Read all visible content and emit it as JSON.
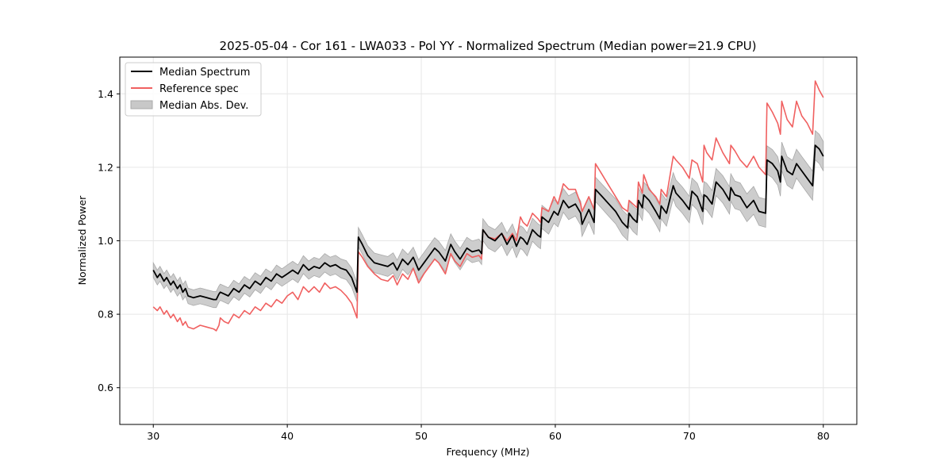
{
  "chart_data": {
    "type": "line",
    "title": "2025-05-04 - Cor 161 - LWA033 - Pol YY - Normalized Spectrum (Median power=21.9 CPU)",
    "xlabel": "Frequency (MHz)",
    "ylabel": "Normalized Power",
    "xlim": [
      27.5,
      82.5
    ],
    "ylim": [
      0.5,
      1.5
    ],
    "xticks": [
      30,
      40,
      50,
      60,
      70,
      80
    ],
    "xtick_labels": [
      "30",
      "40",
      "50",
      "60",
      "70",
      "80"
    ],
    "yticks": [
      0.6,
      0.8,
      1.0,
      1.2,
      1.4
    ],
    "ytick_labels": [
      "0.6",
      "0.8",
      "1.0",
      "1.2",
      "1.4"
    ],
    "grid": true,
    "legend_position": "top-left",
    "legend": [
      {
        "label": "Median Spectrum",
        "kind": "line",
        "color": "#000000"
      },
      {
        "label": "Reference spec",
        "kind": "line",
        "color": "#f06060"
      },
      {
        "label": "Median Abs. Dev.",
        "kind": "band",
        "color": "#bbbbbb"
      }
    ],
    "series": [
      {
        "name": "Median Spectrum",
        "color": "#000000",
        "x": [
          30.0,
          30.3,
          30.5,
          30.8,
          31.0,
          31.3,
          31.5,
          31.8,
          32.0,
          32.2,
          32.4,
          32.6,
          33.0,
          33.5,
          34.0,
          34.5,
          34.7,
          34.9,
          35.0,
          35.3,
          35.6,
          36.0,
          36.4,
          36.8,
          37.2,
          37.6,
          38.0,
          38.4,
          38.8,
          39.2,
          39.6,
          40.0,
          40.4,
          40.8,
          41.2,
          41.6,
          42.0,
          42.4,
          42.8,
          43.2,
          43.6,
          44.0,
          44.4,
          44.8,
          45.2,
          45.3,
          45.6,
          46.0,
          46.5,
          47.0,
          47.5,
          47.9,
          48.2,
          48.6,
          49.0,
          49.4,
          49.8,
          50.2,
          50.6,
          51.0,
          51.3,
          51.8,
          52.2,
          52.5,
          52.9,
          53.4,
          53.8,
          54.3,
          54.5,
          54.6,
          55.0,
          55.5,
          56.0,
          56.4,
          56.8,
          57.1,
          57.4,
          57.6,
          57.9,
          58.3,
          58.7,
          58.9,
          59.0,
          59.5,
          59.9,
          60.2,
          60.6,
          61.0,
          61.5,
          61.9,
          62.0,
          62.5,
          62.9,
          63.0,
          63.5,
          64.0,
          64.5,
          65.0,
          65.4,
          65.5,
          65.8,
          66.1,
          66.2,
          66.5,
          66.6,
          67.0,
          67.5,
          67.8,
          67.9,
          68.3,
          68.8,
          69.0,
          69.5,
          70.0,
          70.2,
          70.6,
          71.0,
          71.1,
          71.3,
          71.7,
          72.0,
          72.5,
          73.0,
          73.1,
          73.4,
          73.8,
          74.3,
          74.8,
          75.2,
          75.7,
          75.8,
          76.2,
          76.6,
          76.8,
          76.9,
          77.3,
          77.7,
          78.0,
          78.4,
          78.8,
          79.2,
          79.4,
          79.7,
          80.0
        ],
        "y": [
          0.92,
          0.9,
          0.91,
          0.89,
          0.9,
          0.88,
          0.89,
          0.87,
          0.88,
          0.86,
          0.87,
          0.85,
          0.845,
          0.85,
          0.845,
          0.84,
          0.84,
          0.855,
          0.86,
          0.855,
          0.85,
          0.87,
          0.86,
          0.88,
          0.87,
          0.89,
          0.88,
          0.9,
          0.89,
          0.91,
          0.9,
          0.91,
          0.92,
          0.91,
          0.935,
          0.92,
          0.93,
          0.925,
          0.94,
          0.93,
          0.935,
          0.925,
          0.92,
          0.9,
          0.86,
          1.01,
          0.99,
          0.96,
          0.94,
          0.935,
          0.93,
          0.94,
          0.92,
          0.95,
          0.935,
          0.955,
          0.92,
          0.94,
          0.96,
          0.98,
          0.97,
          0.945,
          0.99,
          0.97,
          0.95,
          0.98,
          0.97,
          0.975,
          0.965,
          1.03,
          1.01,
          1.0,
          1.02,
          0.99,
          1.015,
          0.985,
          1.01,
          1.005,
          0.99,
          1.03,
          1.015,
          1.01,
          1.065,
          1.05,
          1.08,
          1.07,
          1.11,
          1.09,
          1.1,
          1.075,
          1.045,
          1.085,
          1.05,
          1.14,
          1.12,
          1.1,
          1.08,
          1.05,
          1.035,
          1.075,
          1.06,
          1.05,
          1.11,
          1.09,
          1.125,
          1.11,
          1.08,
          1.06,
          1.095,
          1.075,
          1.15,
          1.13,
          1.11,
          1.085,
          1.135,
          1.12,
          1.08,
          1.125,
          1.12,
          1.1,
          1.16,
          1.14,
          1.11,
          1.145,
          1.125,
          1.12,
          1.09,
          1.11,
          1.08,
          1.075,
          1.22,
          1.21,
          1.19,
          1.16,
          1.23,
          1.19,
          1.18,
          1.21,
          1.19,
          1.17,
          1.15,
          1.26,
          1.25,
          1.23
        ]
      },
      {
        "name": "Reference spec",
        "color": "#f06060",
        "x": [
          30.0,
          30.3,
          30.5,
          30.8,
          31.0,
          31.3,
          31.5,
          31.8,
          32.0,
          32.2,
          32.4,
          32.6,
          33.0,
          33.5,
          34.0,
          34.5,
          34.7,
          34.9,
          35.0,
          35.3,
          35.6,
          36.0,
          36.4,
          36.8,
          37.2,
          37.6,
          38.0,
          38.4,
          38.8,
          39.2,
          39.6,
          40.0,
          40.4,
          40.8,
          41.2,
          41.6,
          42.0,
          42.4,
          42.8,
          43.2,
          43.6,
          44.0,
          44.4,
          44.8,
          45.2,
          45.3,
          45.6,
          46.0,
          46.5,
          47.0,
          47.5,
          47.9,
          48.2,
          48.6,
          49.0,
          49.4,
          49.8,
          50.2,
          50.6,
          51.0,
          51.3,
          51.8,
          52.2,
          52.5,
          52.9,
          53.4,
          53.8,
          54.3,
          54.5,
          54.6,
          55.0,
          55.5,
          56.0,
          56.4,
          56.8,
          57.1,
          57.4,
          57.6,
          57.9,
          58.3,
          58.7,
          58.9,
          59.0,
          59.5,
          59.9,
          60.2,
          60.6,
          61.0,
          61.5,
          61.9,
          62.0,
          62.5,
          62.9,
          63.0,
          63.5,
          64.0,
          64.5,
          65.0,
          65.4,
          65.5,
          65.8,
          66.1,
          66.2,
          66.5,
          66.6,
          67.0,
          67.5,
          67.8,
          67.9,
          68.3,
          68.8,
          69.0,
          69.5,
          70.0,
          70.2,
          70.6,
          71.0,
          71.1,
          71.3,
          71.7,
          72.0,
          72.5,
          73.0,
          73.1,
          73.4,
          73.8,
          74.3,
          74.8,
          75.2,
          75.7,
          75.8,
          76.2,
          76.6,
          76.8,
          76.9,
          77.3,
          77.7,
          78.0,
          78.4,
          78.8,
          79.2,
          79.4,
          79.7,
          80.0
        ],
        "y": [
          0.82,
          0.81,
          0.82,
          0.8,
          0.81,
          0.79,
          0.8,
          0.78,
          0.79,
          0.77,
          0.78,
          0.765,
          0.76,
          0.77,
          0.765,
          0.76,
          0.755,
          0.77,
          0.79,
          0.78,
          0.775,
          0.8,
          0.79,
          0.81,
          0.8,
          0.82,
          0.81,
          0.83,
          0.82,
          0.84,
          0.83,
          0.85,
          0.86,
          0.84,
          0.875,
          0.86,
          0.875,
          0.86,
          0.885,
          0.87,
          0.875,
          0.865,
          0.85,
          0.83,
          0.79,
          0.97,
          0.955,
          0.93,
          0.91,
          0.895,
          0.89,
          0.905,
          0.88,
          0.91,
          0.895,
          0.925,
          0.885,
          0.91,
          0.93,
          0.95,
          0.94,
          0.91,
          0.965,
          0.945,
          0.93,
          0.965,
          0.955,
          0.96,
          0.95,
          1.03,
          1.01,
          1.005,
          1.02,
          1.0,
          1.02,
          1.0,
          1.065,
          1.05,
          1.04,
          1.075,
          1.06,
          1.05,
          1.09,
          1.08,
          1.12,
          1.1,
          1.155,
          1.14,
          1.14,
          1.1,
          1.08,
          1.12,
          1.085,
          1.21,
          1.18,
          1.15,
          1.12,
          1.09,
          1.08,
          1.11,
          1.1,
          1.09,
          1.16,
          1.13,
          1.18,
          1.14,
          1.12,
          1.1,
          1.14,
          1.12,
          1.23,
          1.22,
          1.2,
          1.17,
          1.22,
          1.21,
          1.16,
          1.26,
          1.24,
          1.22,
          1.28,
          1.24,
          1.21,
          1.26,
          1.245,
          1.22,
          1.2,
          1.23,
          1.2,
          1.18,
          1.375,
          1.35,
          1.32,
          1.29,
          1.38,
          1.33,
          1.31,
          1.38,
          1.34,
          1.32,
          1.29,
          1.435,
          1.41,
          1.39
        ]
      }
    ],
    "mad_band": {
      "name": "Median Abs. Dev.",
      "color": "#bbbbbb",
      "half_width_start": 0.02,
      "half_width_end": 0.04
    }
  }
}
